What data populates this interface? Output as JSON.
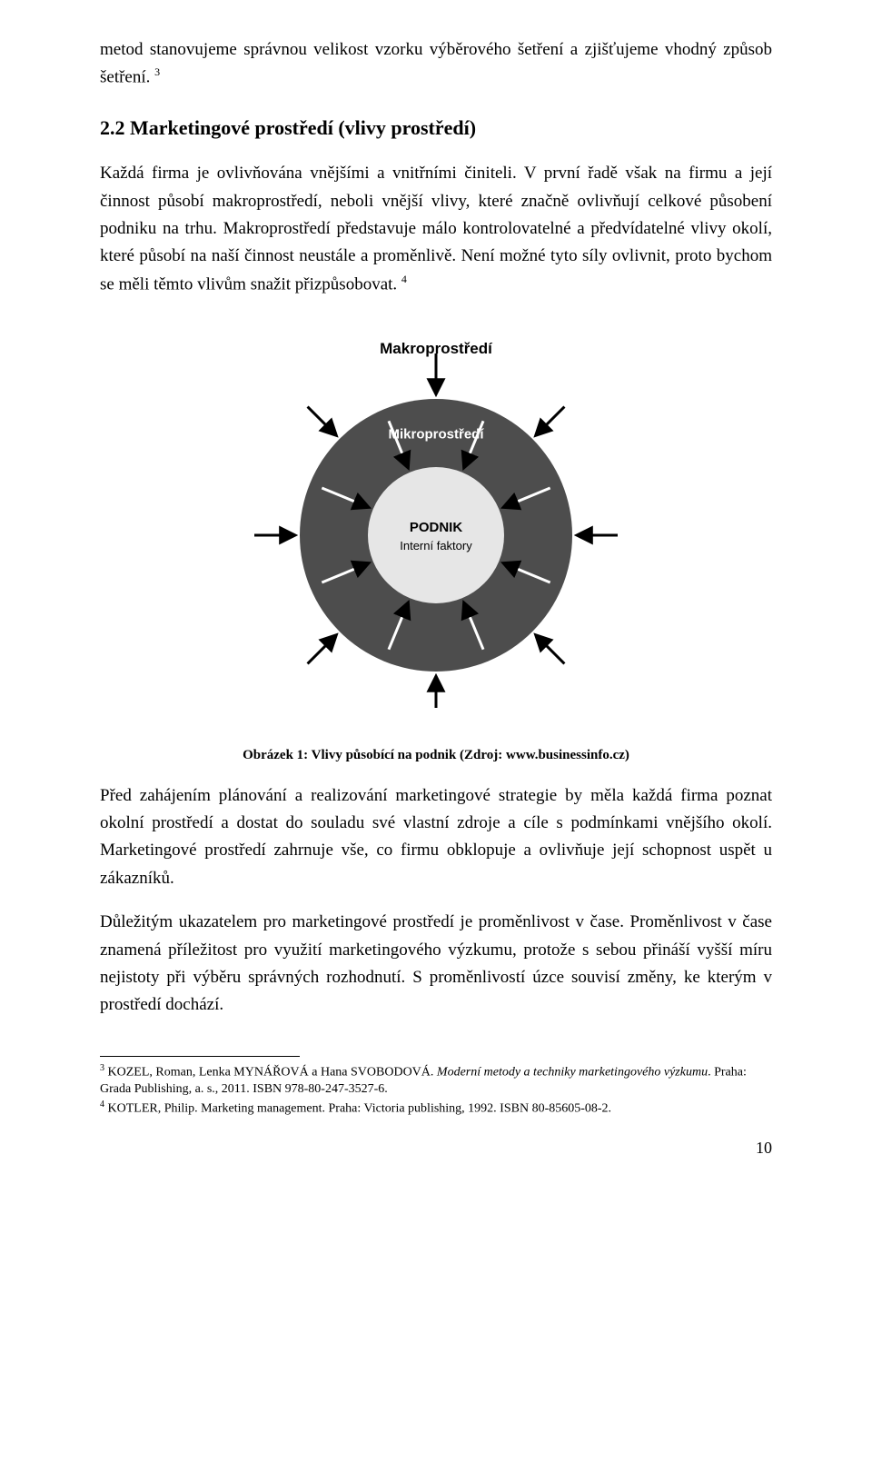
{
  "para1_a": "metod stanovujeme správnou velikost vzorku výběrového šetření a zjišťujeme vhodný způsob šetření.",
  "para1_sup": "3",
  "heading": "2.2  Marketingové prostředí (vlivy prostředí)",
  "para2_a": "Každá firma je ovlivňována vnějšími a vnitřními činiteli. V první řadě však na firmu a její činnost působí makroprostředí, neboli vnější vlivy, které značně ovlivňují celkové působení podniku na trhu. Makroprostředí představuje málo kontrolovatelné a předvídatelné vlivy okolí, které působí na naší činnost neustále a proměnlivě. Není možné tyto síly ovlivnit, proto bychom se měli těmto vlivům snažit přizpůsobovat.",
  "para2_sup": "4",
  "diagram": {
    "label_top": "Makroprostředí",
    "label_ring": "Mikroprostředí",
    "label_center1": "PODNIK",
    "label_center2": "Interní faktory",
    "outer_r": 150,
    "inner_r": 75,
    "colors": {
      "outer_ring": "#4d4d4d",
      "inner_circle": "#e6e6e6",
      "center_text": "#000000",
      "ring_text": "#ffffff",
      "arrow": "#000000",
      "background": "#ffffff"
    },
    "arrows_outer_count": 8,
    "arrows_inner_count": 8
  },
  "caption": "Obrázek 1: Vlivy působící na podnik (Zdroj: www.businessinfo.cz)",
  "para3": "Před zahájením plánování a realizování marketingové strategie by měla každá firma poznat okolní prostředí a dostat do souladu své vlastní zdroje a cíle s podmínkami vnějšího okolí. Marketingové prostředí zahrnuje vše, co firmu obklopuje a ovlivňuje její schopnost uspět u zákazníků.",
  "para4": "Důležitým ukazatelem pro marketingové prostředí je proměnlivost v čase. Proměnlivost v čase znamená příležitost pro využití marketingového výzkumu, protože s sebou přináší vyšší míru nejistoty při výběru správných rozhodnutí. S proměnlivostí úzce souvisí změny, ke kterým v prostředí dochází.",
  "footnote3_sup": "3",
  "footnote3_a": " KOZEL, Roman, Lenka MYNÁŘOVÁ a Hana SVOBODOVÁ. ",
  "footnote3_i": "Moderní metody a techniky marketingového výzkumu",
  "footnote3_b": ". Praha: Grada Publishing, a. s., 2011. ISBN 978-80-247-3527-6.",
  "footnote4_sup": "4",
  "footnote4_a": " KOTLER, Philip. Marketing management. Praha: Victoria publishing, 1992. ISBN 80-85605-08-2.",
  "page_number": "10"
}
